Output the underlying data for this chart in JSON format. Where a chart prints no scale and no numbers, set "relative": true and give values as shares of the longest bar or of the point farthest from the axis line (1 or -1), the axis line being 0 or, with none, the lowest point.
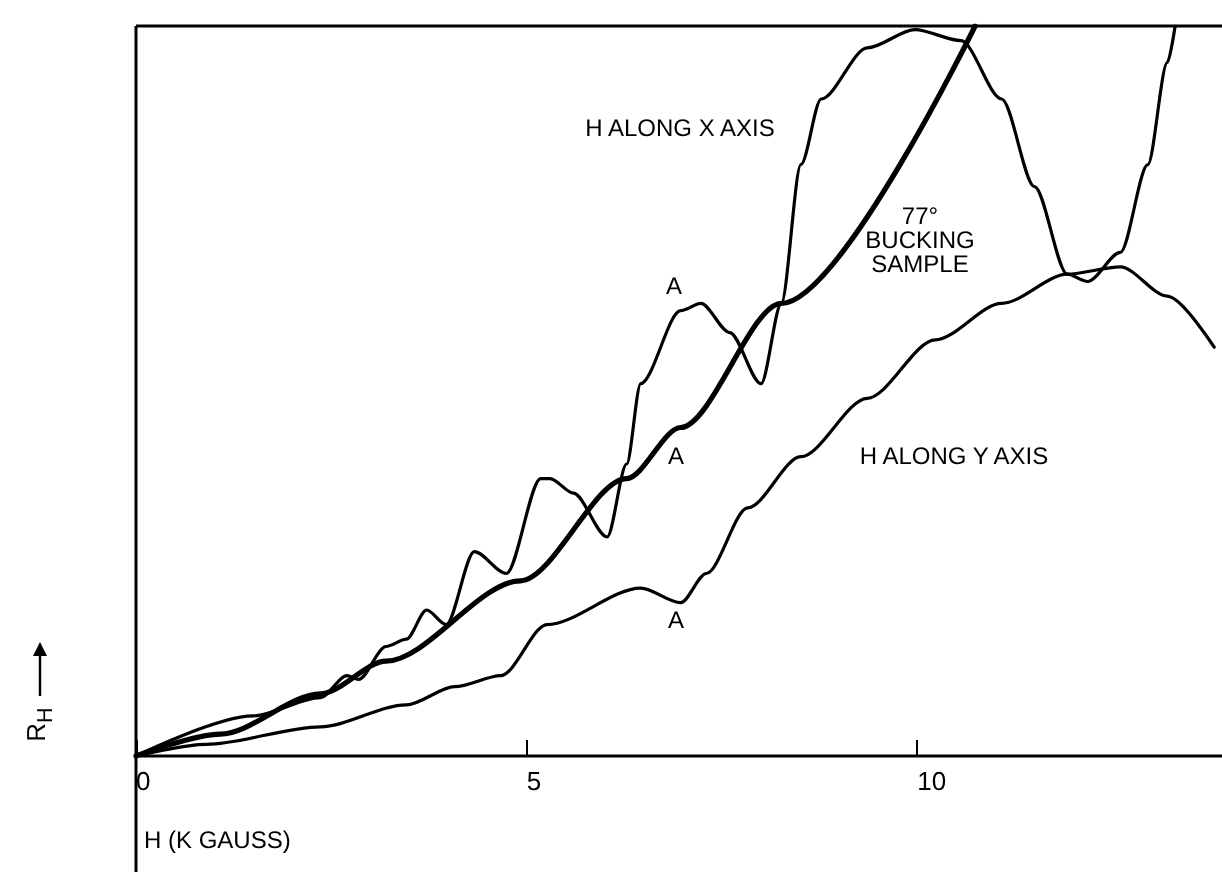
{
  "chart_data": {
    "type": "line",
    "relative": true,
    "xlabel": "H (K GAUSS)",
    "ylabel": "R$_{H}$",
    "xlim": [
      0,
      13.9
    ],
    "xticks": [
      0,
      5,
      10
    ],
    "grid": false,
    "marker": "none",
    "line_style": "solid",
    "series": [
      {
        "name": "H ALONG X AXIS",
        "color": "#000000",
        "x": [
          0,
          1.5,
          2.36,
          2.7,
          2.85,
          3.2,
          3.46,
          3.72,
          3.97,
          4.33,
          4.74,
          5.18,
          5.3,
          5.6,
          6.03,
          6.28,
          6.46,
          6.97,
          7.23,
          7.6,
          8.0,
          8.26,
          8.51,
          8.77,
          9.36,
          9.97,
          10.56,
          11.08,
          11.5,
          11.92,
          12.18,
          12.6,
          12.95,
          13.2,
          13.3
        ],
        "values": [
          0,
          0.055,
          0.08,
          0.11,
          0.105,
          0.15,
          0.16,
          0.2,
          0.18,
          0.28,
          0.25,
          0.38,
          0.38,
          0.36,
          0.3,
          0.4,
          0.51,
          0.61,
          0.62,
          0.58,
          0.51,
          0.62,
          0.81,
          0.9,
          0.97,
          0.995,
          0.98,
          0.9,
          0.78,
          0.66,
          0.65,
          0.69,
          0.81,
          0.95,
          1.0
        ]
      },
      {
        "name": "H ALONG Y AXIS",
        "color": "#000000",
        "x": [
          0,
          0.9,
          2.36,
          3.46,
          4.08,
          4.67,
          5.26,
          6.46,
          6.97,
          7.3,
          7.83,
          8.51,
          9.36,
          10.23,
          11.08,
          11.92,
          12.6,
          13.2,
          13.8
        ],
        "values": [
          0,
          0.016,
          0.04,
          0.07,
          0.095,
          0.11,
          0.18,
          0.23,
          0.21,
          0.25,
          0.34,
          0.41,
          0.49,
          0.57,
          0.62,
          0.66,
          0.67,
          0.63,
          0.56
        ]
      },
      {
        "name": "77°\nBUCKING\nSAMPLE",
        "color": "#000000",
        "x": [
          0,
          1.08,
          2.36,
          3.2,
          4.92,
          6.28,
          6.97,
          8.26,
          10.74
        ],
        "values": [
          0,
          0.03,
          0.085,
          0.13,
          0.24,
          0.38,
          0.45,
          0.62,
          1.0
        ]
      }
    ],
    "annotations": [
      "A",
      "A",
      "A"
    ]
  }
}
